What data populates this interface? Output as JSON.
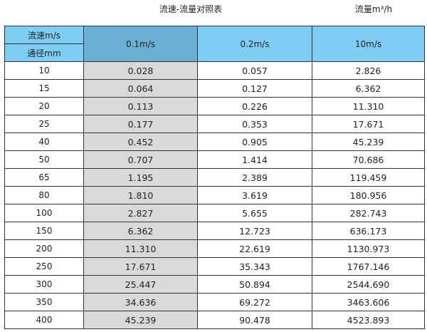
{
  "title": "流速-流量对照表",
  "unit_label": "流量m³/h",
  "header": {
    "speed_label": "流速m/s",
    "diameter_label": "通径mm",
    "columns": [
      "0.1m/s",
      "0.2m/s",
      "10m/s"
    ]
  },
  "colors": {
    "header_bg": "#7ecdf4",
    "selected_header_bg": "#6ab0d4",
    "selected_column_bg": "#d9d9d9"
  },
  "rows": [
    [
      "10",
      "0.028",
      "0.057",
      "2.826"
    ],
    [
      "15",
      "0.064",
      "0.127",
      "6.362"
    ],
    [
      "20",
      "0.113",
      "0.226",
      "11.310"
    ],
    [
      "25",
      "0.177",
      "0.353",
      "17.671"
    ],
    [
      "40",
      "0.452",
      "0.905",
      "45.239"
    ],
    [
      "50",
      "0.707",
      "1.414",
      "70.686"
    ],
    [
      "65",
      "1.195",
      "2.389",
      "119.459"
    ],
    [
      "80",
      "1.810",
      "3.619",
      "180.956"
    ],
    [
      "100",
      "2.827",
      "5.655",
      "282.743"
    ],
    [
      "150",
      "6.362",
      "12.723",
      "636.173"
    ],
    [
      "200",
      "11.310",
      "22.619",
      "1130.973"
    ],
    [
      "250",
      "17.671",
      "35.343",
      "1767.146"
    ],
    [
      "300",
      "25.447",
      "50.894",
      "2544.690"
    ],
    [
      "350",
      "34.636",
      "69.272",
      "3463.606"
    ],
    [
      "400",
      "45.239",
      "90.478",
      "4523.893"
    ]
  ]
}
